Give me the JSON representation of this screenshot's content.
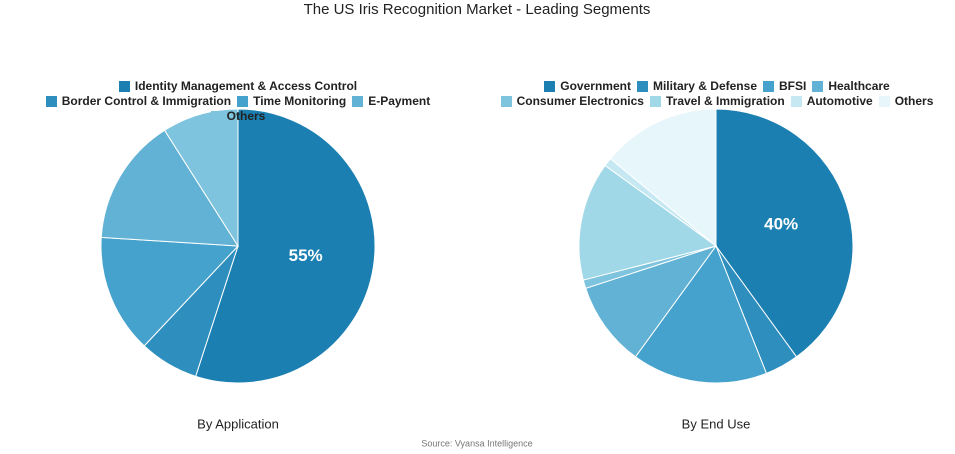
{
  "title": "The US Iris Recognition Market - Leading Segments",
  "source": "Source: Vyansa Intelligence",
  "chart_data": [
    {
      "type": "pie",
      "title": "By Application",
      "categories": [
        "Identity Management & Access Control",
        "Border Control & Immigration",
        "Time Monitoring",
        "E-Payment",
        "Others"
      ],
      "values": [
        55,
        7,
        14,
        15,
        9
      ],
      "value_labels": [
        "55%",
        null,
        null,
        null,
        null
      ],
      "colors": [
        "#1b7fb1",
        "#2e8fbf",
        "#45a2cc",
        "#61b2d4",
        "#7ec4de"
      ]
    },
    {
      "type": "pie",
      "title": "By End Use",
      "categories": [
        "Government",
        "Military & Defense",
        "BFSI",
        "Healthcare",
        "Consumer Electronics",
        "Travel & Immigration",
        "Automotive",
        "Others"
      ],
      "values": [
        40,
        4,
        16,
        10,
        1,
        14,
        1,
        14
      ],
      "value_labels": [
        "40%",
        null,
        null,
        null,
        null,
        null,
        null,
        null
      ],
      "colors": [
        "#1b7fb1",
        "#2e8fbf",
        "#45a2cc",
        "#61b2d4",
        "#7ec4de",
        "#a0d8e7",
        "#c5e8f2",
        "#e6f6fa"
      ]
    }
  ]
}
